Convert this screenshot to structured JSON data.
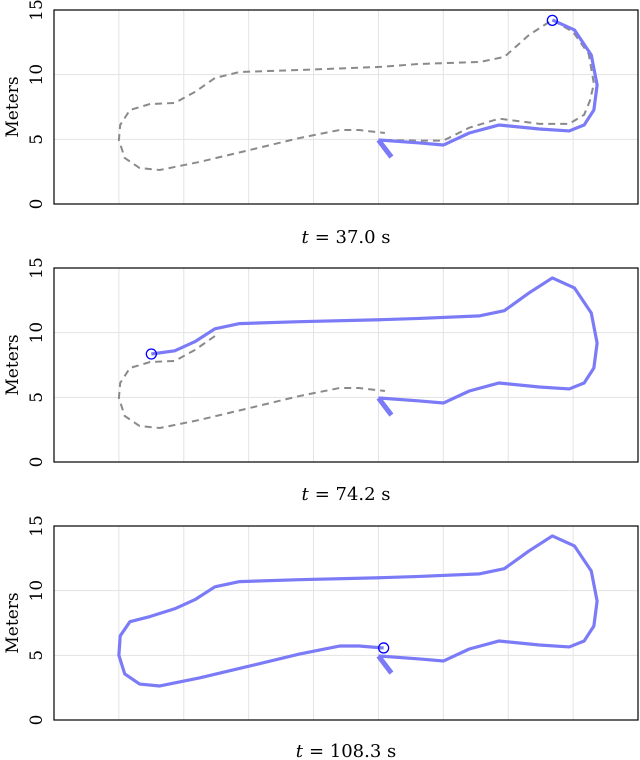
{
  "chart_data": {
    "type": "line",
    "ylabel": "Meters",
    "xlim": [
      0,
      45
    ],
    "ylim": [
      0,
      15
    ],
    "x_grid_step": 5,
    "y_ticks": [
      0,
      5,
      10,
      15
    ],
    "x_tick_labels_shown": false,
    "grid": true,
    "colors": {
      "traveled": "#7b7bf7",
      "planned": "#8a8a8a",
      "position_marker": "#0000ff",
      "grid": "#e3e3e3"
    },
    "start_marker": {
      "x": [
        25.0,
        26.0
      ],
      "y": [
        4.95,
        3.63
      ]
    },
    "panels": [
      {
        "caption_var": "t",
        "caption_value": "= 37.0 s",
        "position": [
          38.4,
          14.2
        ],
        "traveled": {
          "x": [
            25.0,
            28.15,
            30.0,
            32.0,
            34.3,
            37.4,
            39.7,
            40.85,
            41.6,
            41.85,
            41.4,
            40.1,
            38.4
          ],
          "y": [
            4.95,
            4.72,
            4.56,
            5.49,
            6.11,
            5.8,
            5.65,
            6.11,
            7.27,
            9.2,
            11.52,
            13.46,
            14.23
          ]
        },
        "planned": {
          "x": [
            25.5,
            28.15,
            30.0,
            32.0,
            34.3,
            37.4,
            39.7,
            40.85,
            41.3,
            41.6,
            41.2,
            40.0,
            38.4,
            36.6,
            34.7,
            32.8,
            28.15,
            25.1,
            18.9,
            14.3,
            12.4,
            10.85,
            9.3,
            7.4,
            5.85,
            5.1,
            5.0,
            5.45,
            6.6,
            8.15,
            11.2,
            15.1,
            18.9,
            22.0,
            23.5,
            25.5
          ],
          "y": [
            4.95,
            4.9,
            4.9,
            5.9,
            6.6,
            6.2,
            6.2,
            6.9,
            8.0,
            9.3,
            11.6,
            13.3,
            14.23,
            13.07,
            11.37,
            10.98,
            10.83,
            10.6,
            10.36,
            10.21,
            9.74,
            8.66,
            7.81,
            7.73,
            7.27,
            6.11,
            4.95,
            3.56,
            2.78,
            2.63,
            3.25,
            4.18,
            5.1,
            5.72,
            5.72,
            5.49
          ]
        }
      },
      {
        "caption_var": "t",
        "caption_value": "= 74.2 s",
        "position": [
          7.5,
          8.35
        ],
        "traveled": {
          "x": [
            25.0,
            28.15,
            30.0,
            32.0,
            34.3,
            37.4,
            39.7,
            40.85,
            41.6,
            41.85,
            41.4,
            40.1,
            38.4,
            36.6,
            34.7,
            32.8,
            28.15,
            25.1,
            18.9,
            14.3,
            12.4,
            10.85,
            9.3,
            7.5
          ],
          "y": [
            4.95,
            4.72,
            4.56,
            5.49,
            6.11,
            5.8,
            5.65,
            6.11,
            7.27,
            9.2,
            11.52,
            13.46,
            14.23,
            13.07,
            11.7,
            11.3,
            11.1,
            11.0,
            10.85,
            10.7,
            10.3,
            9.3,
            8.6,
            8.35
          ]
        },
        "planned": {
          "x": [
            12.4,
            10.85,
            9.3,
            7.4,
            5.85,
            5.1,
            5.0,
            5.45,
            6.6,
            8.15,
            11.2,
            15.1,
            18.9,
            22.0,
            23.5,
            25.5
          ],
          "y": [
            9.74,
            8.66,
            7.81,
            7.73,
            7.27,
            6.11,
            4.95,
            3.56,
            2.78,
            2.63,
            3.25,
            4.18,
            5.1,
            5.72,
            5.72,
            5.49
          ]
        }
      },
      {
        "caption_var": "t",
        "caption_value": "= 108.3 s",
        "position": [
          25.4,
          5.57
        ],
        "traveled": {
          "x": [
            25.0,
            28.15,
            30.0,
            32.0,
            34.3,
            37.4,
            39.7,
            40.85,
            41.6,
            41.85,
            41.4,
            40.1,
            38.4,
            36.6,
            34.7,
            32.8,
            28.15,
            25.1,
            18.9,
            14.3,
            12.4,
            10.85,
            9.3,
            7.4,
            5.85,
            5.1,
            5.0,
            5.45,
            6.6,
            8.15,
            11.2,
            15.1,
            18.9,
            22.0,
            23.5,
            25.4
          ],
          "y": [
            4.95,
            4.72,
            4.56,
            5.49,
            6.11,
            5.8,
            5.65,
            6.11,
            7.27,
            9.2,
            11.52,
            13.46,
            14.23,
            13.07,
            11.7,
            11.3,
            11.1,
            11.0,
            10.85,
            10.7,
            10.3,
            9.3,
            8.6,
            8.0,
            7.6,
            6.5,
            5.0,
            3.56,
            2.78,
            2.63,
            3.25,
            4.18,
            5.1,
            5.72,
            5.72,
            5.57
          ]
        },
        "planned": {
          "x": [],
          "y": []
        }
      }
    ]
  }
}
